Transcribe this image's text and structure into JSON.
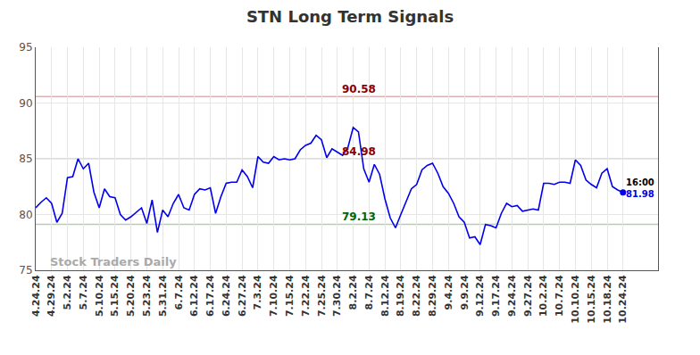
{
  "chart_data": {
    "type": "line",
    "title": "STN Long Term Signals",
    "categories": [
      "4.24.24",
      null,
      null,
      "4.29.24",
      null,
      null,
      "5.2.24",
      null,
      null,
      "5.7.24",
      null,
      null,
      "5.10.24",
      null,
      null,
      "5.15.24",
      null,
      null,
      "5.20.24",
      null,
      null,
      "5.23.24",
      null,
      null,
      "5.31.24",
      null,
      null,
      "6.7.24",
      null,
      null,
      "6.12.24",
      null,
      null,
      "6.17.24",
      null,
      null,
      "6.24.24",
      null,
      null,
      "6.27.24",
      null,
      null,
      "7.3.24",
      null,
      null,
      "7.10.24",
      null,
      null,
      "7.15.24",
      null,
      null,
      "7.22.24",
      null,
      null,
      "7.25.24",
      null,
      null,
      "7.30.24",
      null,
      null,
      "8.2.24",
      null,
      null,
      "8.7.24",
      null,
      null,
      "8.12.24",
      null,
      null,
      "8.19.24",
      null,
      null,
      "8.22.24",
      null,
      null,
      "8.29.24",
      null,
      null,
      "9.4.24",
      null,
      null,
      "9.9.24",
      null,
      null,
      "9.12.24",
      null,
      null,
      "9.17.24",
      null,
      null,
      "9.24.24",
      null,
      null,
      "9.27.24",
      null,
      null,
      "10.2.24",
      null,
      null,
      "10.7.24",
      null,
      null,
      "10.10.24",
      null,
      null,
      "10.15.24",
      null,
      null,
      "10.18.24",
      null,
      null,
      "10.24.24"
    ],
    "values": [
      80.6,
      81.1,
      81.5,
      81.0,
      79.3,
      80.1,
      83.3,
      83.4,
      85.0,
      84.1,
      84.6,
      82.0,
      80.6,
      82.3,
      81.6,
      81.5,
      80.0,
      79.5,
      79.8,
      80.2,
      80.6,
      79.2,
      81.3,
      78.4,
      80.4,
      79.8,
      81.0,
      81.8,
      80.6,
      80.4,
      81.8,
      82.3,
      82.2,
      82.4,
      80.1,
      81.6,
      82.8,
      82.9,
      82.9,
      84.0,
      83.4,
      82.4,
      85.2,
      84.7,
      84.6,
      85.2,
      84.9,
      85.0,
      84.9,
      85.0,
      85.8,
      86.2,
      86.4,
      87.1,
      86.7,
      85.1,
      85.9,
      85.6,
      85.3,
      86.0,
      87.8,
      87.4,
      84.1,
      82.9,
      84.5,
      83.6,
      81.4,
      79.7,
      78.8,
      80.0,
      81.1,
      82.3,
      82.7,
      84.0,
      84.4,
      84.6,
      83.7,
      82.5,
      81.9,
      81.0,
      79.8,
      79.3,
      77.9,
      78.0,
      77.3,
      79.1,
      79.0,
      78.8,
      80.1,
      81.0,
      80.7,
      80.8,
      80.3,
      80.4,
      80.5,
      80.4,
      82.8,
      82.8,
      82.7,
      82.9,
      82.9,
      82.8,
      84.9,
      84.4,
      83.1,
      82.7,
      82.4,
      83.7,
      84.1,
      82.5,
      82.2,
      81.98
    ],
    "color": "#0000ee",
    "ylim": [
      75,
      95
    ],
    "yticks": [
      75,
      80,
      85,
      90,
      95
    ],
    "grid": true,
    "levels": [
      {
        "value": 90.58,
        "color": "#8b0000"
      },
      {
        "value": 84.98,
        "color": "#8b0000"
      },
      {
        "value": 79.13,
        "color": "#006400"
      }
    ],
    "last_time": "16:00",
    "watermark": "Stock Traders Daily"
  }
}
